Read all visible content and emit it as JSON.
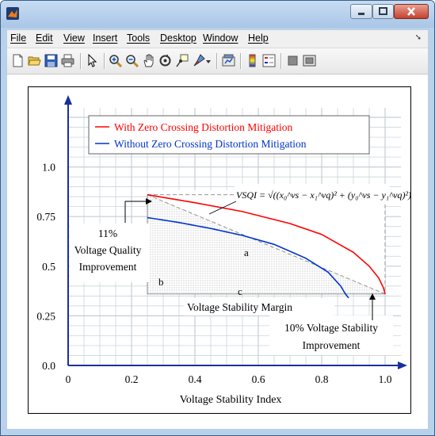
{
  "window": {
    "controls": [
      "minimize",
      "maximize",
      "close"
    ]
  },
  "menu": {
    "items": [
      "File",
      "Edit",
      "View",
      "Insert",
      "Tools",
      "Desktop",
      "Window",
      "Help"
    ]
  },
  "toolbar": {
    "icons": [
      "new-file-icon",
      "open-folder-icon",
      "save-icon",
      "print-icon",
      "pointer-icon",
      "zoom-in-icon",
      "zoom-out-icon",
      "pan-icon",
      "rotate-icon",
      "data-cursor-icon",
      "brush-icon",
      "link-icon",
      "colorbar-icon",
      "legend-icon",
      "hide-plot-tools-icon",
      "show-plot-tools-icon"
    ]
  },
  "colors": {
    "red_series": "#ff0000",
    "blue_series": "#0033cc",
    "grid": "#99a9b3",
    "axis": "#1a2f9e"
  },
  "chart_data": {
    "type": "line",
    "title": "",
    "xlabel": "Voltage Stability Index",
    "ylabel": "",
    "xlim": [
      0,
      1.0
    ],
    "ylim": [
      0.0,
      1.25
    ],
    "xticks": [
      "0",
      "0.2",
      "0.4",
      "0.6",
      "0.8",
      "1.0"
    ],
    "yticks": [
      "0.0",
      "0.25",
      "0.5",
      "0.75",
      "1.0"
    ],
    "grid": true,
    "legend_position": "top",
    "series": [
      {
        "name": "With Zero Crossing Distortion Mitigation",
        "color": "#ff0000",
        "x": [
          0.25,
          0.4,
          0.55,
          0.7,
          0.8,
          0.9,
          0.95,
          0.98,
          0.995,
          1.0,
          1.0
        ],
        "y": [
          0.86,
          0.82,
          0.775,
          0.715,
          0.66,
          0.57,
          0.5,
          0.44,
          0.39,
          0.36,
          0.36
        ]
      },
      {
        "name": "Without Zero Crossing Distortion Mitigation",
        "color": "#0033cc",
        "x": [
          0.25,
          0.35,
          0.45,
          0.55,
          0.65,
          0.75,
          0.82,
          0.86,
          0.875,
          0.885
        ],
        "y": [
          0.745,
          0.72,
          0.69,
          0.655,
          0.61,
          0.54,
          0.47,
          0.4,
          0.36,
          0.34
        ]
      }
    ],
    "annotations": {
      "formula": "VSQI = √((x₀^vs − x₁^vq)² + (y₀^vs − y₁^vq)²)",
      "region_a": "a",
      "region_b": "b",
      "region_c": "c",
      "voltage_quality": [
        "11%",
        "Voltage Quality",
        "Improvement"
      ],
      "stability_margin": "Voltage Stability Margin",
      "stability_improvement": [
        "10% Voltage Stability",
        "Improvement"
      ]
    }
  }
}
